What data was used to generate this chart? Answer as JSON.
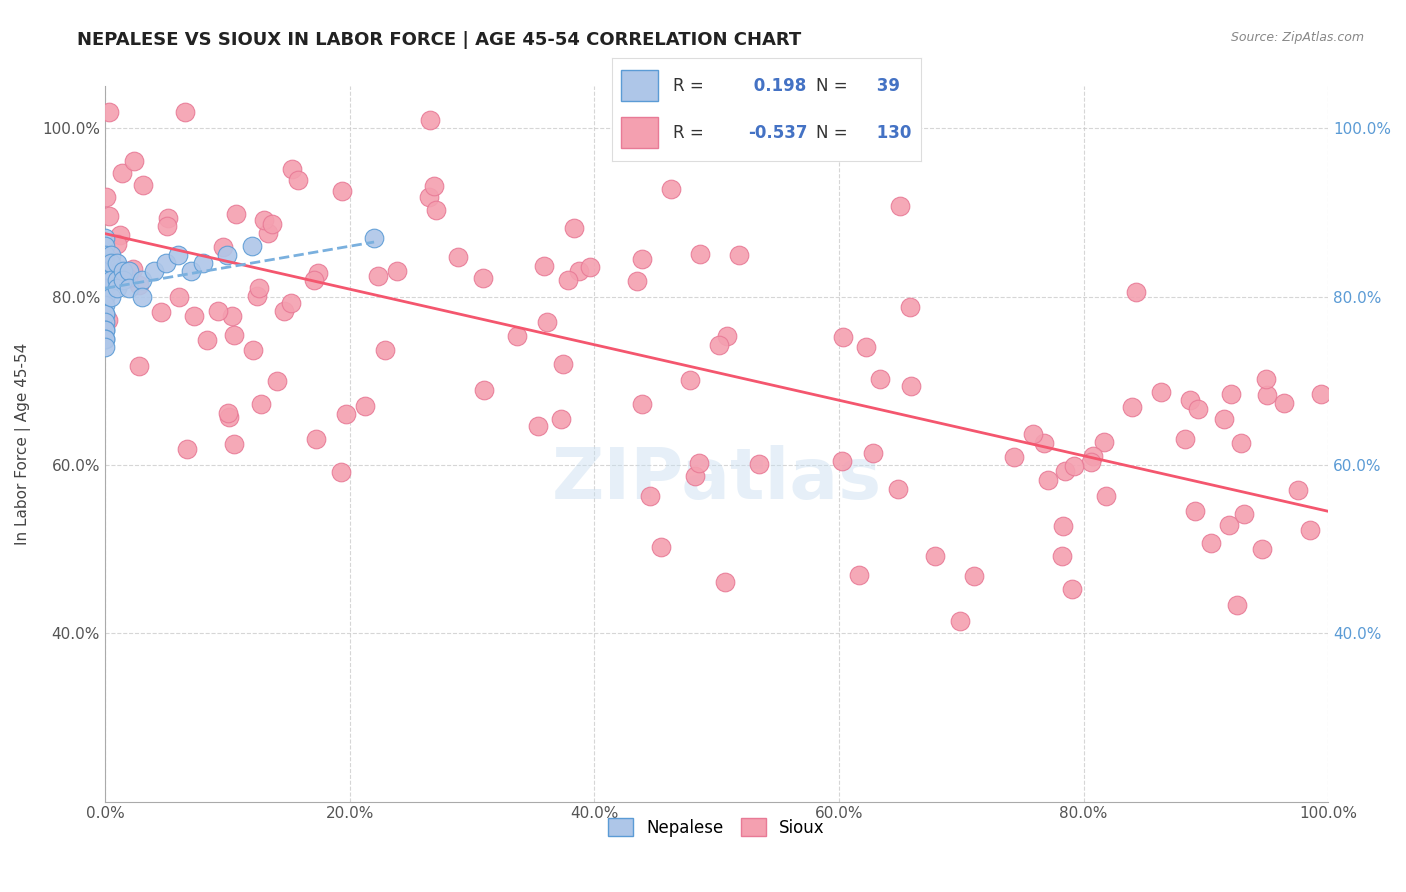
{
  "title": "NEPALESE VS SIOUX IN LABOR FORCE | AGE 45-54 CORRELATION CHART",
  "source_text": "Source: ZipAtlas.com",
  "ylabel": "In Labor Force | Age 45-54",
  "xlim": [
    0.0,
    1.0
  ],
  "ylim": [
    0.2,
    1.05
  ],
  "xtick_vals": [
    0.0,
    0.2,
    0.4,
    0.6,
    0.8,
    1.0
  ],
  "xtick_labels": [
    "0.0%",
    "20.0%",
    "40.0%",
    "60.0%",
    "80.0%",
    "100.0%"
  ],
  "ytick_vals": [
    0.4,
    0.6,
    0.8,
    1.0
  ],
  "ytick_labels": [
    "40.0%",
    "60.0%",
    "80.0%",
    "100.0%"
  ],
  "grid_color": "#cccccc",
  "background_color": "#ffffff",
  "nepalese_color": "#aec6e8",
  "sioux_color": "#f4a0b0",
  "nepalese_edge_color": "#5b9bd5",
  "sioux_edge_color": "#e87a96",
  "nepalese_line_color": "#7ab0de",
  "nepalese_line_style": "--",
  "sioux_line_color": "#f4566e",
  "R_nepalese": 0.198,
  "N_nepalese": 39,
  "R_sioux": -0.537,
  "N_sioux": 130,
  "legend_box_color_nepalese": "#aec6e8",
  "legend_box_color_sioux": "#f4a0b0",
  "sioux_line_start_y": 0.875,
  "sioux_line_end_y": 0.545,
  "nepalese_line_start_x": 0.0,
  "nepalese_line_start_y": 0.81,
  "nepalese_line_end_x": 0.22,
  "nepalese_line_end_y": 0.865
}
